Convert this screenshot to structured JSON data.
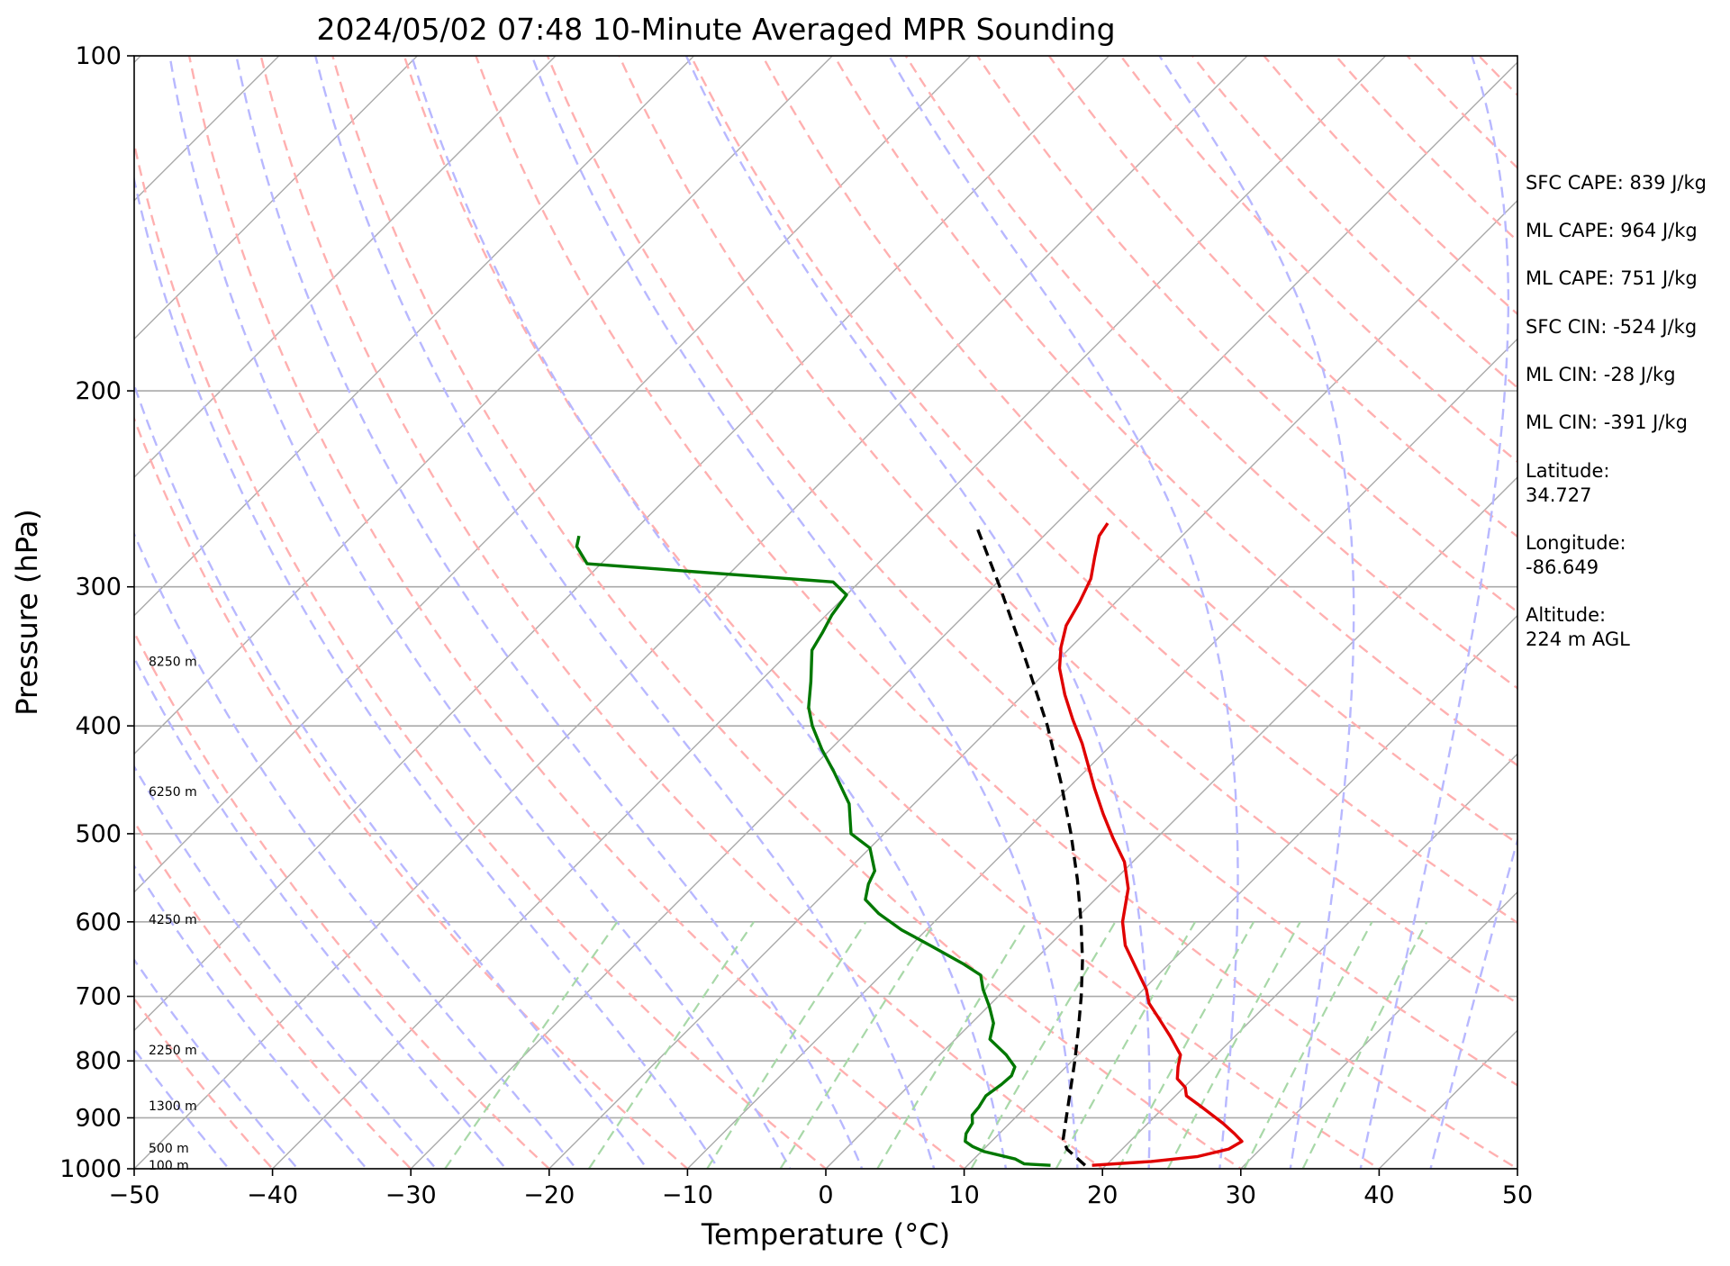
{
  "chart_data": {
    "type": "line",
    "title": "2024/05/02 07:48 10-Minute Averaged MPR Sounding",
    "xlabel": "Temperature (°C)",
    "ylabel": "Pressure (hPa)",
    "xlim": [
      -50,
      50
    ],
    "ylim": [
      1000,
      100
    ],
    "y_scale": "log",
    "x_ticks": [
      -50,
      -40,
      -30,
      -20,
      -10,
      0,
      10,
      20,
      30,
      40,
      50
    ],
    "x_tick_labels": [
      "−50",
      "−40",
      "−30",
      "−20",
      "−10",
      "0",
      "10",
      "20",
      "30",
      "40",
      "50"
    ],
    "y_ticks": [
      100,
      200,
      300,
      400,
      500,
      600,
      700,
      800,
      900,
      1000
    ],
    "y_tick_labels": [
      "100",
      "200",
      "300",
      "400",
      "500",
      "600",
      "700",
      "800",
      "900",
      "1000"
    ],
    "diagram": "skew-T log-P",
    "skew_degrees": 45,
    "background_lines": {
      "isotherms": {
        "color": "#aaaaaa",
        "style": "solid"
      },
      "dry_adiabats": {
        "color": "#ffb0b0",
        "style": "dashed"
      },
      "moist_adiabats": {
        "color": "#b8b8ff",
        "style": "dashed"
      },
      "mixing_ratio_lines": {
        "color": "#a8d8a8",
        "style": "dashed"
      }
    },
    "height_labels": [
      {
        "text": "8250 m",
        "pressure": 350
      },
      {
        "text": "6250 m",
        "pressure": 458
      },
      {
        "text": "4250 m",
        "pressure": 597
      },
      {
        "text": "2250 m",
        "pressure": 782
      },
      {
        "text": "1300 m",
        "pressure": 878
      },
      {
        "text": "500 m",
        "pressure": 958
      },
      {
        "text": "100 m",
        "pressure": 993
      }
    ],
    "series": [
      {
        "color": "#e00000",
        "style": "solid",
        "points": [
          {
            "p": 993,
            "t": 19.0
          },
          {
            "p": 985,
            "t": 23.0
          },
          {
            "p": 975,
            "t": 26.0
          },
          {
            "p": 960,
            "t": 27.7
          },
          {
            "p": 945,
            "t": 28.1
          },
          {
            "p": 930,
            "t": 27.0
          },
          {
            "p": 910,
            "t": 25.4
          },
          {
            "p": 880,
            "t": 22.7
          },
          {
            "p": 860,
            "t": 20.8
          },
          {
            "p": 845,
            "t": 20.1
          },
          {
            "p": 830,
            "t": 18.9
          },
          {
            "p": 810,
            "t": 18.1
          },
          {
            "p": 790,
            "t": 17.4
          },
          {
            "p": 760,
            "t": 15.3
          },
          {
            "p": 730,
            "t": 13.0
          },
          {
            "p": 710,
            "t": 11.4
          },
          {
            "p": 690,
            "t": 10.2
          },
          {
            "p": 660,
            "t": 7.9
          },
          {
            "p": 630,
            "t": 5.5
          },
          {
            "p": 600,
            "t": 3.6
          },
          {
            "p": 560,
            "t": 1.6
          },
          {
            "p": 530,
            "t": -0.6
          },
          {
            "p": 505,
            "t": -3.1
          },
          {
            "p": 480,
            "t": -5.6
          },
          {
            "p": 455,
            "t": -8.1
          },
          {
            "p": 435,
            "t": -10.1
          },
          {
            "p": 415,
            "t": -12.2
          },
          {
            "p": 395,
            "t": -14.6
          },
          {
            "p": 375,
            "t": -17.0
          },
          {
            "p": 355,
            "t": -19.3
          },
          {
            "p": 340,
            "t": -20.7
          },
          {
            "p": 325,
            "t": -21.9
          },
          {
            "p": 310,
            "t": -22.6
          },
          {
            "p": 295,
            "t": -23.5
          },
          {
            "p": 282,
            "t": -24.8
          },
          {
            "p": 270,
            "t": -26.0
          },
          {
            "p": 263,
            "t": -26.3
          }
        ]
      },
      {
        "color": "#007800",
        "style": "solid",
        "points": [
          {
            "p": 993,
            "t": 16.0
          },
          {
            "p": 990,
            "t": 14.0
          },
          {
            "p": 980,
            "t": 13.0
          },
          {
            "p": 965,
            "t": 10.2
          },
          {
            "p": 955,
            "t": 9.0
          },
          {
            "p": 945,
            "t": 8.1
          },
          {
            "p": 930,
            "t": 7.6
          },
          {
            "p": 910,
            "t": 7.3
          },
          {
            "p": 895,
            "t": 6.7
          },
          {
            "p": 880,
            "t": 6.6
          },
          {
            "p": 860,
            "t": 6.3
          },
          {
            "p": 840,
            "t": 6.6
          },
          {
            "p": 825,
            "t": 6.7
          },
          {
            "p": 810,
            "t": 6.3
          },
          {
            "p": 790,
            "t": 4.8
          },
          {
            "p": 765,
            "t": 2.5
          },
          {
            "p": 740,
            "t": 1.6
          },
          {
            "p": 715,
            "t": 0.1
          },
          {
            "p": 690,
            "t": -1.6
          },
          {
            "p": 670,
            "t": -2.8
          },
          {
            "p": 655,
            "t": -4.8
          },
          {
            "p": 630,
            "t": -8.6
          },
          {
            "p": 610,
            "t": -11.8
          },
          {
            "p": 590,
            "t": -14.6
          },
          {
            "p": 573,
            "t": -16.6
          },
          {
            "p": 555,
            "t": -17.5
          },
          {
            "p": 540,
            "t": -18.0
          },
          {
            "p": 515,
            "t": -20.0
          },
          {
            "p": 500,
            "t": -22.4
          },
          {
            "p": 470,
            "t": -24.7
          },
          {
            "p": 440,
            "t": -28.1
          },
          {
            "p": 420,
            "t": -30.6
          },
          {
            "p": 400,
            "t": -33.0
          },
          {
            "p": 385,
            "t": -34.6
          },
          {
            "p": 365,
            "t": -36.3
          },
          {
            "p": 342,
            "t": -38.5
          },
          {
            "p": 330,
            "t": -39.0
          },
          {
            "p": 318,
            "t": -39.6
          },
          {
            "p": 305,
            "t": -40.0
          },
          {
            "p": 297,
            "t": -41.9
          },
          {
            "p": 286,
            "t": -61.0
          },
          {
            "p": 276,
            "t": -63.0
          },
          {
            "p": 270,
            "t": -63.6
          }
        ]
      },
      {
        "color": "#000000",
        "style": "dashed",
        "points": [
          {
            "p": 993,
            "t": 18.5
          },
          {
            "p": 960,
            "t": 16.0
          },
          {
            "p": 940,
            "t": 15.0
          },
          {
            "p": 900,
            "t": 13.7
          },
          {
            "p": 850,
            "t": 12.0
          },
          {
            "p": 800,
            "t": 10.2
          },
          {
            "p": 750,
            "t": 8.2
          },
          {
            "p": 700,
            "t": 6.0
          },
          {
            "p": 650,
            "t": 3.5
          },
          {
            "p": 600,
            "t": 0.6
          },
          {
            "p": 550,
            "t": -2.7
          },
          {
            "p": 500,
            "t": -6.5
          },
          {
            "p": 450,
            "t": -10.9
          },
          {
            "p": 400,
            "t": -16.0
          },
          {
            "p": 350,
            "t": -22.2
          },
          {
            "p": 300,
            "t": -29.5
          },
          {
            "p": 265,
            "t": -35.5
          }
        ]
      }
    ]
  },
  "annotations": [
    "SFC CAPE: 839 J/kg",
    "ML CAPE: 964 J/kg",
    "ML CAPE: 751 J/kg",
    "SFC CIN: -524 J/kg",
    "ML CIN: -28 J/kg",
    "ML CIN: -391 J/kg",
    "Latitude:",
    "34.727",
    "Longitude:",
    "-86.649",
    "Altitude:",
    "224 m AGL"
  ]
}
